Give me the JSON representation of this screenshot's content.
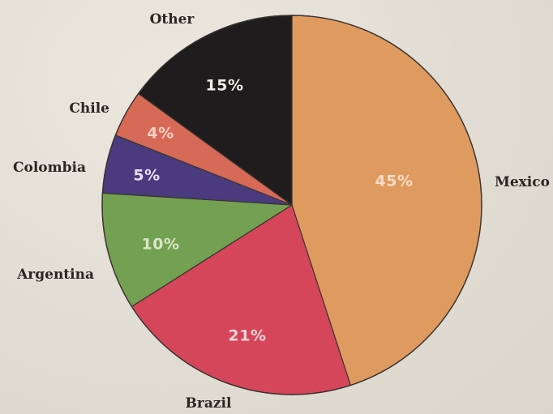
{
  "chart_data": {
    "type": "pie",
    "title": "",
    "slices": [
      {
        "label": "Mexico",
        "value": 45,
        "display": "45%",
        "color": "#df9b5f",
        "text_color": "#f2dcc6"
      },
      {
        "label": "Brazil",
        "value": 21,
        "display": "21%",
        "color": "#d6465b",
        "text_color": "#f3d2d4"
      },
      {
        "label": "Argentina",
        "value": 10,
        "display": "10%",
        "color": "#74a052",
        "text_color": "#d9e6c9"
      },
      {
        "label": "Colombia",
        "value": 5,
        "display": "5%",
        "color": "#4a3a7e",
        "text_color": "#e6e0f2"
      },
      {
        "label": "Chile",
        "value": 4,
        "display": "4%",
        "color": "#d66a56",
        "text_color": "#f6cfc4"
      },
      {
        "label": "Other",
        "value": 15,
        "display": "15%",
        "color": "#1e1c1d",
        "text_color": "#f0ece8"
      }
    ],
    "start": "12 o'clock",
    "direction": "clockwise",
    "legend": "none",
    "labels": "outside category names, inside percentages"
  }
}
